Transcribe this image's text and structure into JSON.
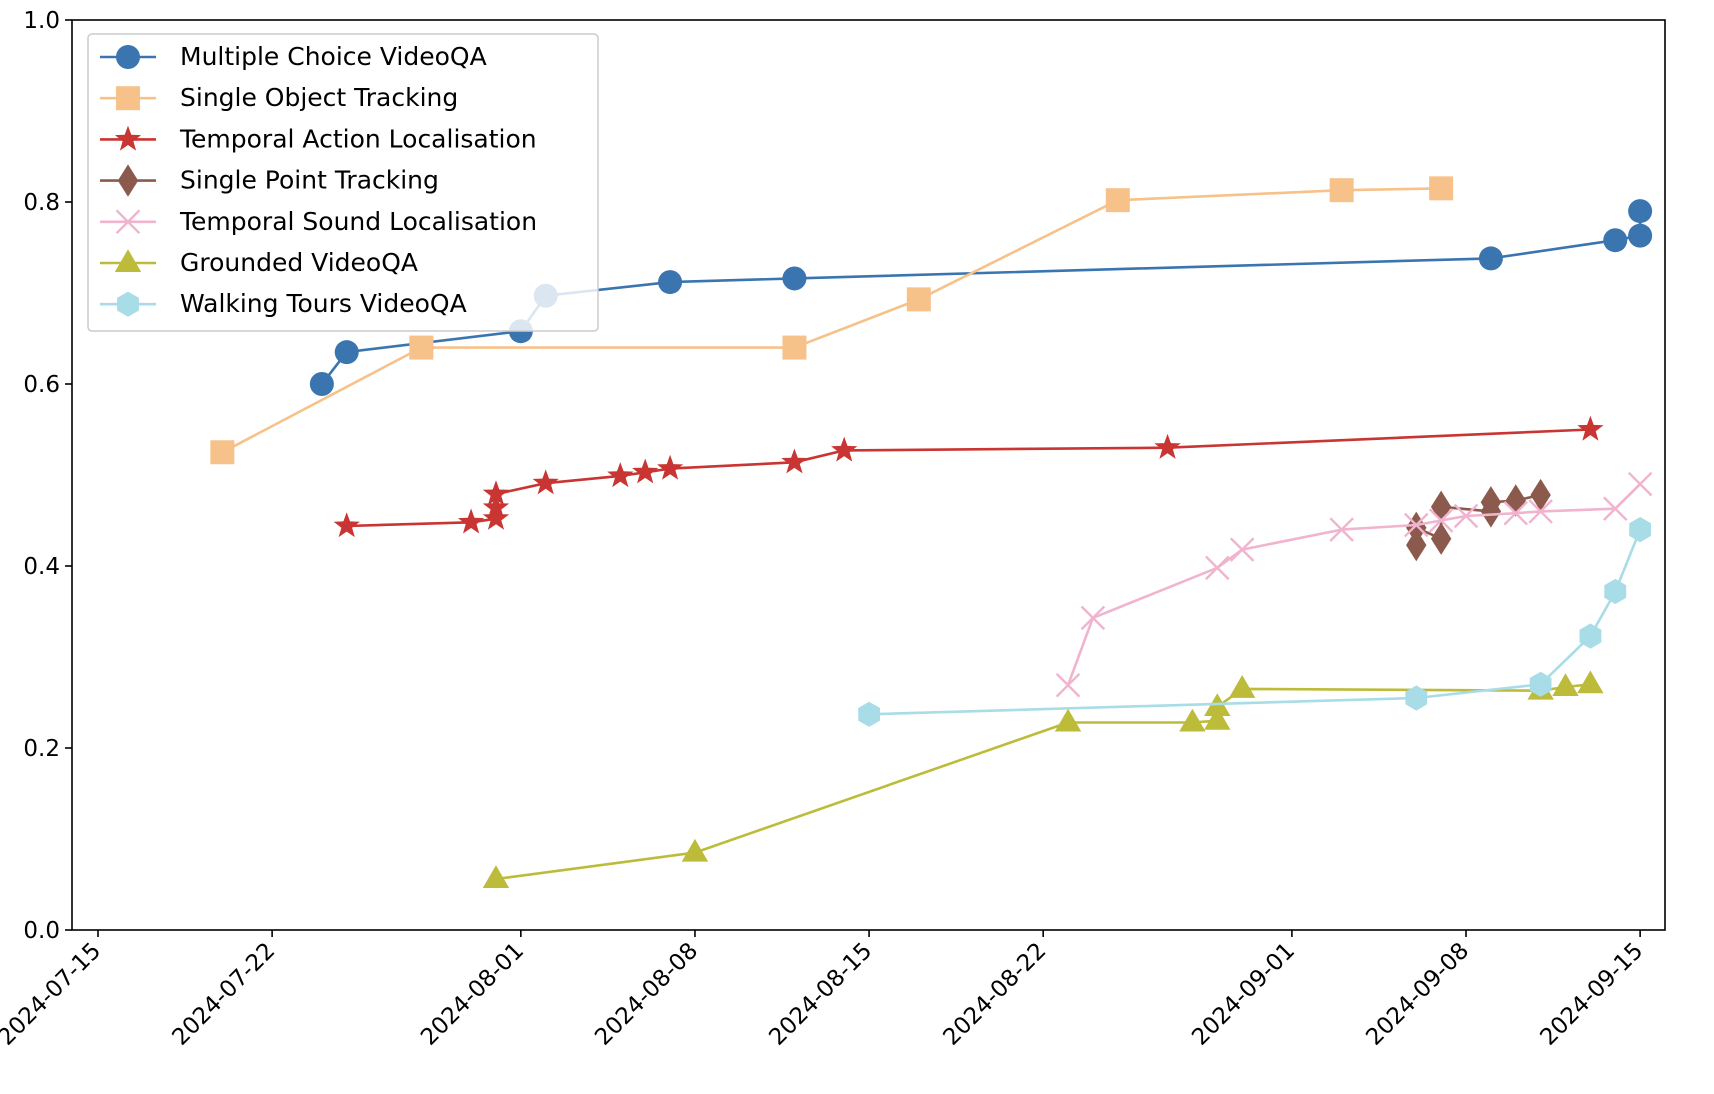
{
  "chart_data": {
    "type": "line",
    "title": "",
    "xlabel": "",
    "ylabel": "",
    "xlim": [
      "2024-07-15",
      "2024-09-16"
    ],
    "ylim": [
      0,
      1
    ],
    "grid": false,
    "legend_position": "top-left",
    "x_ticks": [
      "2024-07-15",
      "2024-07-22",
      "2024-08-01",
      "2024-08-08",
      "2024-08-15",
      "2024-08-22",
      "2024-09-01",
      "2024-09-08",
      "2024-09-15"
    ],
    "y_ticks": [
      "0.0",
      "0.2",
      "0.4",
      "0.6",
      "0.8",
      "1.0"
    ],
    "series": [
      {
        "name": "Multiple Choice VideoQA",
        "color": "#3a75b0",
        "marker": "circle",
        "points": [
          [
            "2024-07-24",
            0.6
          ],
          [
            "2024-07-25",
            0.635
          ],
          [
            "2024-08-01",
            0.658
          ],
          [
            "2024-08-02",
            0.697
          ],
          [
            "2024-08-07",
            0.712
          ],
          [
            "2024-08-12",
            0.716
          ],
          [
            "2024-09-09",
            0.738
          ],
          [
            "2024-09-14",
            0.758
          ],
          [
            "2024-09-15",
            0.763
          ],
          [
            "2024-09-15",
            0.79
          ]
        ]
      },
      {
        "name": "Single Object Tracking",
        "color": "#f7c18a",
        "marker": "square",
        "points": [
          [
            "2024-07-20",
            0.525
          ],
          [
            "2024-07-28",
            0.64
          ],
          [
            "2024-08-12",
            0.64
          ],
          [
            "2024-08-17",
            0.693
          ],
          [
            "2024-08-25",
            0.802
          ],
          [
            "2024-09-03",
            0.813
          ],
          [
            "2024-09-07",
            0.815
          ]
        ]
      },
      {
        "name": "Temporal Action Localisation",
        "color": "#c83532",
        "marker": "star",
        "points": [
          [
            "2024-07-25",
            0.444
          ],
          [
            "2024-07-30",
            0.448
          ],
          [
            "2024-07-31",
            0.452
          ],
          [
            "2024-07-31",
            0.464
          ],
          [
            "2024-07-31",
            0.479
          ],
          [
            "2024-08-02",
            0.491
          ],
          [
            "2024-08-05",
            0.499
          ],
          [
            "2024-08-06",
            0.503
          ],
          [
            "2024-08-07",
            0.507
          ],
          [
            "2024-08-12",
            0.514
          ],
          [
            "2024-08-14",
            0.527
          ],
          [
            "2024-08-27",
            0.53
          ],
          [
            "2024-09-13",
            0.55
          ]
        ]
      },
      {
        "name": "Single Point Tracking",
        "color": "#8b5a4c",
        "marker": "diamond",
        "points": [
          [
            "2024-09-06",
            0.423
          ],
          [
            "2024-09-06",
            0.442
          ],
          [
            "2024-09-07",
            0.43
          ],
          [
            "2024-09-07",
            0.465
          ],
          [
            "2024-09-09",
            0.46
          ],
          [
            "2024-09-09",
            0.47
          ],
          [
            "2024-09-10",
            0.472
          ],
          [
            "2024-09-11",
            0.478
          ]
        ]
      },
      {
        "name": "Temporal Sound Localisation",
        "color": "#f0b4cf",
        "marker": "x",
        "points": [
          [
            "2024-08-23",
            0.269
          ],
          [
            "2024-08-24",
            0.343
          ],
          [
            "2024-08-29",
            0.398
          ],
          [
            "2024-08-30",
            0.418
          ],
          [
            "2024-09-03",
            0.44
          ],
          [
            "2024-09-06",
            0.445
          ],
          [
            "2024-09-07",
            0.45
          ],
          [
            "2024-09-08",
            0.455
          ],
          [
            "2024-09-10",
            0.458
          ],
          [
            "2024-09-11",
            0.46
          ],
          [
            "2024-09-14",
            0.463
          ],
          [
            "2024-09-15",
            0.49
          ]
        ]
      },
      {
        "name": "Grounded VideoQA",
        "color": "#bcbc3a",
        "marker": "triangle",
        "points": [
          [
            "2024-07-31",
            0.056
          ],
          [
            "2024-08-08",
            0.085
          ],
          [
            "2024-08-23",
            0.228
          ],
          [
            "2024-08-28",
            0.228
          ],
          [
            "2024-08-29",
            0.23
          ],
          [
            "2024-08-29",
            0.245
          ],
          [
            "2024-08-30",
            0.265
          ],
          [
            "2024-09-11",
            0.263
          ],
          [
            "2024-09-12",
            0.267
          ],
          [
            "2024-09-13",
            0.27
          ]
        ]
      },
      {
        "name": "Walking Tours VideoQA",
        "color": "#a8dce6",
        "marker": "hexagon",
        "points": [
          [
            "2024-08-15",
            0.237
          ],
          [
            "2024-09-06",
            0.255
          ],
          [
            "2024-09-11",
            0.27
          ],
          [
            "2024-09-13",
            0.323
          ],
          [
            "2024-09-14",
            0.372
          ],
          [
            "2024-09-15",
            0.44
          ]
        ]
      }
    ]
  }
}
